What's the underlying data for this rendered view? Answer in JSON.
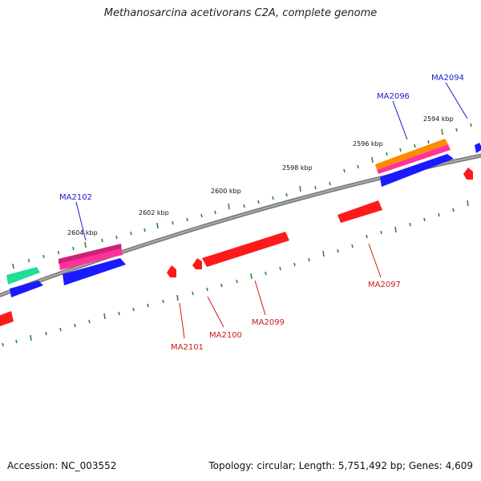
{
  "title": "Methanosarcina acetivorans C2A, complete genome",
  "footer": {
    "accession": "Accession: NC_003552",
    "summary": "Topology: circular; Length: 5,751,492 bp; Genes: 4,609"
  },
  "scale": {
    "labels": [
      "2594 kbp",
      "2596 kbp",
      "2598 kbp",
      "2600 kbp",
      "2602 kbp",
      "2604 kbp"
    ]
  },
  "genes": {
    "forward_labels": [
      "MA2094",
      "MA2096",
      "MA2102"
    ],
    "reverse_labels": [
      "MA2097",
      "MA2099",
      "MA2100",
      "MA2101"
    ]
  },
  "colors": {
    "backbone": "#8a8a8a",
    "tick": "#2e8b2e",
    "forward_label": "#1a1acc",
    "reverse_label": "#cc1a1a",
    "gene_red": "#ff1a1a",
    "gene_blue": "#1a1aff",
    "gene_pink": "#ff3399",
    "gene_orange": "#ff8c00",
    "gene_green": "#22dd99"
  }
}
